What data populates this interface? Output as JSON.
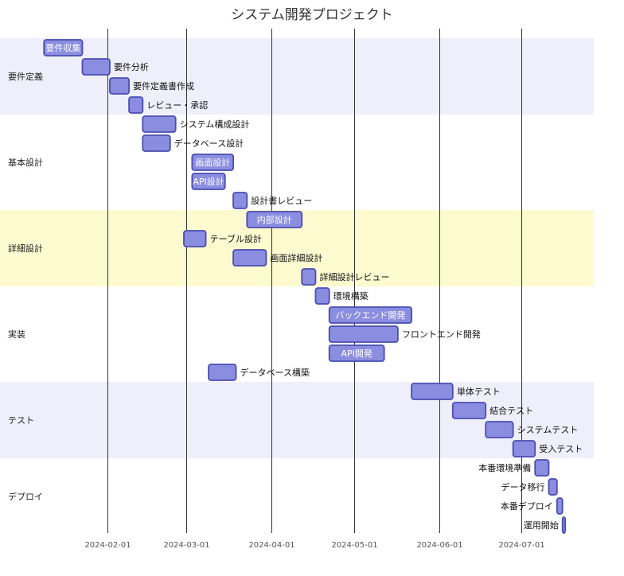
{
  "chart_data": {
    "type": "gantt",
    "title": "システム開発プロジェクト",
    "x_axis": {
      "ticks": [
        "2024-02-01",
        "2024-03-01",
        "2024-04-01",
        "2024-05-01",
        "2024-06-01",
        "2024-07-01"
      ],
      "grid": true
    },
    "colors": {
      "bar_fill": "#8b8ee0",
      "bar_stroke": "#4a4db0",
      "section_band_1": "#efeffb",
      "section_band_2": "#ffffff",
      "section_band_3": "#fdfad0"
    },
    "sections": [
      {
        "name": "要件定義",
        "band": "section_band_1",
        "tasks": [
          {
            "name": "要件収集",
            "start": "2024-01-09",
            "end": "2024-01-23",
            "label_position": "inside"
          },
          {
            "name": "要件分析",
            "start": "2024-01-23",
            "end": "2024-02-02",
            "label_position": "right"
          },
          {
            "name": "要件定義書作成",
            "start": "2024-02-02",
            "end": "2024-02-09",
            "label_position": "right"
          },
          {
            "name": "レビュー・承認",
            "start": "2024-02-09",
            "end": "2024-02-14",
            "label_position": "right"
          }
        ]
      },
      {
        "name": "基本設計",
        "band": "section_band_2",
        "tasks": [
          {
            "name": "システム構成設計",
            "start": "2024-02-14",
            "end": "2024-02-26",
            "label_position": "right"
          },
          {
            "name": "データベース設計",
            "start": "2024-02-14",
            "end": "2024-02-24",
            "label_position": "right"
          },
          {
            "name": "画面設計",
            "start": "2024-03-03",
            "end": "2024-03-18",
            "label_position": "inside"
          },
          {
            "name": "API設計",
            "start": "2024-03-03",
            "end": "2024-03-15",
            "label_position": "inside"
          },
          {
            "name": "設計書レビュー",
            "start": "2024-03-18",
            "end": "2024-03-23",
            "label_position": "right"
          }
        ]
      },
      {
        "name": "詳細設計",
        "band": "section_band_3",
        "tasks": [
          {
            "name": "内部設計",
            "start": "2024-03-23",
            "end": "2024-04-12",
            "label_position": "inside"
          },
          {
            "name": "テーブル設計",
            "start": "2024-02-29",
            "end": "2024-03-08",
            "label_position": "right"
          },
          {
            "name": "画面詳細設計",
            "start": "2024-03-18",
            "end": "2024-03-30",
            "label_position": "right"
          },
          {
            "name": "詳細設計レビュー",
            "start": "2024-04-12",
            "end": "2024-04-17",
            "label_position": "right"
          }
        ]
      },
      {
        "name": "実装",
        "band": "section_band_2",
        "tasks": [
          {
            "name": "環境構築",
            "start": "2024-04-17",
            "end": "2024-04-22",
            "label_position": "right"
          },
          {
            "name": "バックエンド開発",
            "start": "2024-04-22",
            "end": "2024-05-22",
            "label_position": "inside"
          },
          {
            "name": "フロントエンド開発",
            "start": "2024-04-22",
            "end": "2024-05-17",
            "label_position": "right"
          },
          {
            "name": "API開発",
            "start": "2024-04-22",
            "end": "2024-05-12",
            "label_position": "inside"
          },
          {
            "name": "データベース構築",
            "start": "2024-03-09",
            "end": "2024-03-19",
            "label_position": "right"
          }
        ]
      },
      {
        "name": "テスト",
        "band": "section_band_1",
        "tasks": [
          {
            "name": "単体テスト",
            "start": "2024-05-22",
            "end": "2024-06-06",
            "label_position": "right"
          },
          {
            "name": "結合テスト",
            "start": "2024-06-06",
            "end": "2024-06-18",
            "label_position": "right"
          },
          {
            "name": "システムテスト",
            "start": "2024-06-18",
            "end": "2024-06-28",
            "label_position": "right"
          },
          {
            "name": "受入テスト",
            "start": "2024-06-28",
            "end": "2024-07-06",
            "label_position": "right"
          }
        ]
      },
      {
        "name": "デプロイ",
        "band": "section_band_2",
        "tasks": [
          {
            "name": "本番環境準備",
            "start": "2024-07-06",
            "end": "2024-07-11",
            "label_position": "left"
          },
          {
            "name": "データ移行",
            "start": "2024-07-11",
            "end": "2024-07-14",
            "label_position": "left"
          },
          {
            "name": "本番デプロイ",
            "start": "2024-07-14",
            "end": "2024-07-16",
            "label_position": "left"
          },
          {
            "name": "運用開始",
            "start": "2024-07-16",
            "end": "2024-07-17",
            "label_position": "left"
          }
        ]
      }
    ]
  }
}
